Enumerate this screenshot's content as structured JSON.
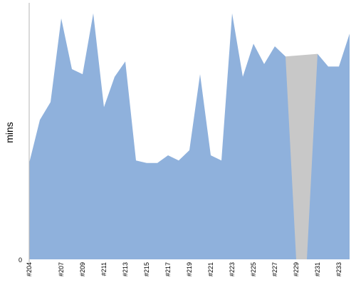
{
  "chart_data": {
    "type": "area",
    "ylabel": "mins",
    "ytick_labels": [
      "0"
    ],
    "ylim": [
      0,
      100
    ],
    "x_categories": [
      "#204",
      "#205",
      "#206",
      "#207",
      "#208",
      "#209",
      "#210",
      "#211",
      "#212",
      "#213",
      "#214",
      "#215",
      "#216",
      "#217",
      "#218",
      "#219",
      "#220",
      "#221",
      "#222",
      "#223",
      "#224",
      "#225",
      "#226",
      "#227",
      "#228",
      "#229",
      "#230",
      "#231",
      "#232",
      "#233",
      "#234"
    ],
    "x_tick_labels": [
      "#204",
      "#207",
      "#209",
      "#211",
      "#213",
      "#215",
      "#217",
      "#219",
      "#221",
      "#223",
      "#225",
      "#227",
      "#229",
      "#231",
      "#233"
    ],
    "values": [
      38,
      55,
      62,
      95,
      75,
      73,
      97,
      60,
      72,
      78,
      39,
      38,
      38,
      41,
      39,
      43,
      73,
      41,
      39,
      97,
      72,
      85,
      77,
      84,
      80,
      0,
      0,
      81,
      76,
      76,
      89
    ],
    "colors": {
      "area": "#8fb1dc",
      "failed": "#c8c8c8",
      "axis": "#b5b5b5"
    }
  }
}
